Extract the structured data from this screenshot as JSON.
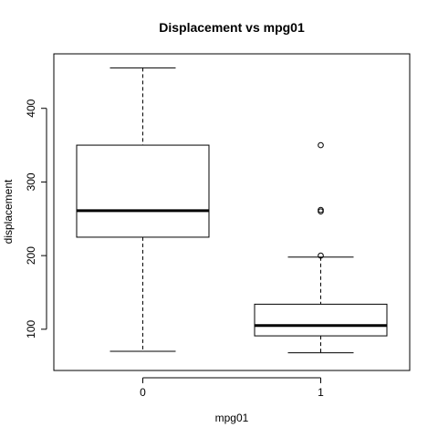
{
  "chart_data": {
    "type": "box",
    "title": "Displacement vs mpg01",
    "xlabel": "mpg01",
    "ylabel": "displacement",
    "categories": [
      "0",
      "1"
    ],
    "ylim": [
      44,
      474
    ],
    "yticks": [
      100,
      200,
      300,
      400
    ],
    "grid": false,
    "boxes": [
      {
        "category": "0",
        "whisker_low": 70,
        "q1": 225,
        "median": 261,
        "q3": 350,
        "whisker_high": 455,
        "outliers": []
      },
      {
        "category": "1",
        "whisker_low": 68,
        "q1": 91,
        "median": 105,
        "q3": 134,
        "whisker_high": 198,
        "outliers": [
          200,
          260,
          262,
          350
        ]
      }
    ]
  }
}
